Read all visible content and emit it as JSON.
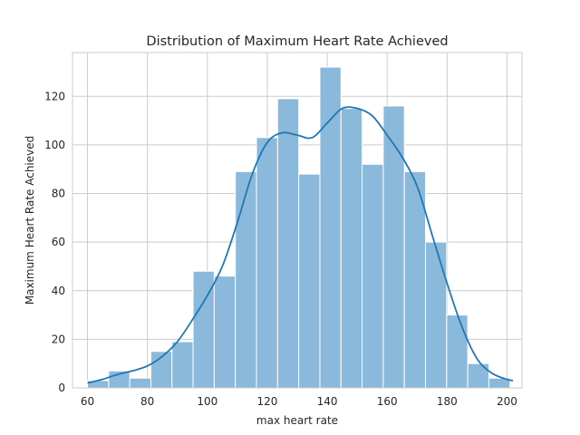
{
  "chart_data": {
    "type": "bar",
    "title": "Distribution of Maximum Heart Rate Achieved",
    "xlabel": "max heart rate",
    "ylabel": "Maximum Heart Rate Achieved",
    "xlim": [
      55,
      205
    ],
    "ylim": [
      0,
      138
    ],
    "xticks": [
      60,
      80,
      100,
      120,
      140,
      160,
      180,
      200
    ],
    "yticks": [
      0,
      20,
      40,
      60,
      80,
      100,
      120
    ],
    "grid": true,
    "bins": [
      {
        "start": 60.0,
        "end": 67.05,
        "count": 3
      },
      {
        "start": 67.05,
        "end": 74.1,
        "count": 7
      },
      {
        "start": 74.1,
        "end": 81.15,
        "count": 4
      },
      {
        "start": 81.15,
        "end": 88.2,
        "count": 15
      },
      {
        "start": 88.2,
        "end": 95.25,
        "count": 19
      },
      {
        "start": 95.25,
        "end": 102.3,
        "count": 48
      },
      {
        "start": 102.3,
        "end": 109.35,
        "count": 46
      },
      {
        "start": 109.35,
        "end": 116.4,
        "count": 89
      },
      {
        "start": 116.4,
        "end": 123.45,
        "count": 103
      },
      {
        "start": 123.45,
        "end": 130.5,
        "count": 119
      },
      {
        "start": 130.5,
        "end": 137.55,
        "count": 88
      },
      {
        "start": 137.55,
        "end": 144.6,
        "count": 132
      },
      {
        "start": 144.6,
        "end": 151.65,
        "count": 115
      },
      {
        "start": 151.65,
        "end": 158.7,
        "count": 92
      },
      {
        "start": 158.7,
        "end": 165.75,
        "count": 116
      },
      {
        "start": 165.75,
        "end": 172.8,
        "count": 89
      },
      {
        "start": 172.8,
        "end": 179.85,
        "count": 60
      },
      {
        "start": 179.85,
        "end": 186.9,
        "count": 30
      },
      {
        "start": 186.9,
        "end": 193.95,
        "count": 10
      },
      {
        "start": 193.95,
        "end": 201.0,
        "count": 4
      }
    ],
    "kde": {
      "x": [
        60,
        65,
        70,
        75,
        80,
        85,
        90,
        95,
        100,
        105,
        110,
        115,
        120,
        125,
        130,
        135,
        140,
        145,
        150,
        155,
        160,
        165,
        170,
        175,
        180,
        185,
        190,
        195,
        200,
        202
      ],
      "y": [
        2,
        3.5,
        5.5,
        7,
        9,
        13,
        19,
        28,
        38,
        50,
        68,
        88,
        101,
        105,
        104,
        103,
        109,
        115,
        115,
        112,
        104,
        95,
        83,
        63,
        43,
        25,
        12,
        6,
        3.5,
        3
      ]
    },
    "colors": {
      "bar_fill": "#8bb9db",
      "bar_edge": "#ffffff",
      "kde_line": "#1f77b4",
      "grid": "#cccccc",
      "frame": "#cccccc"
    }
  }
}
